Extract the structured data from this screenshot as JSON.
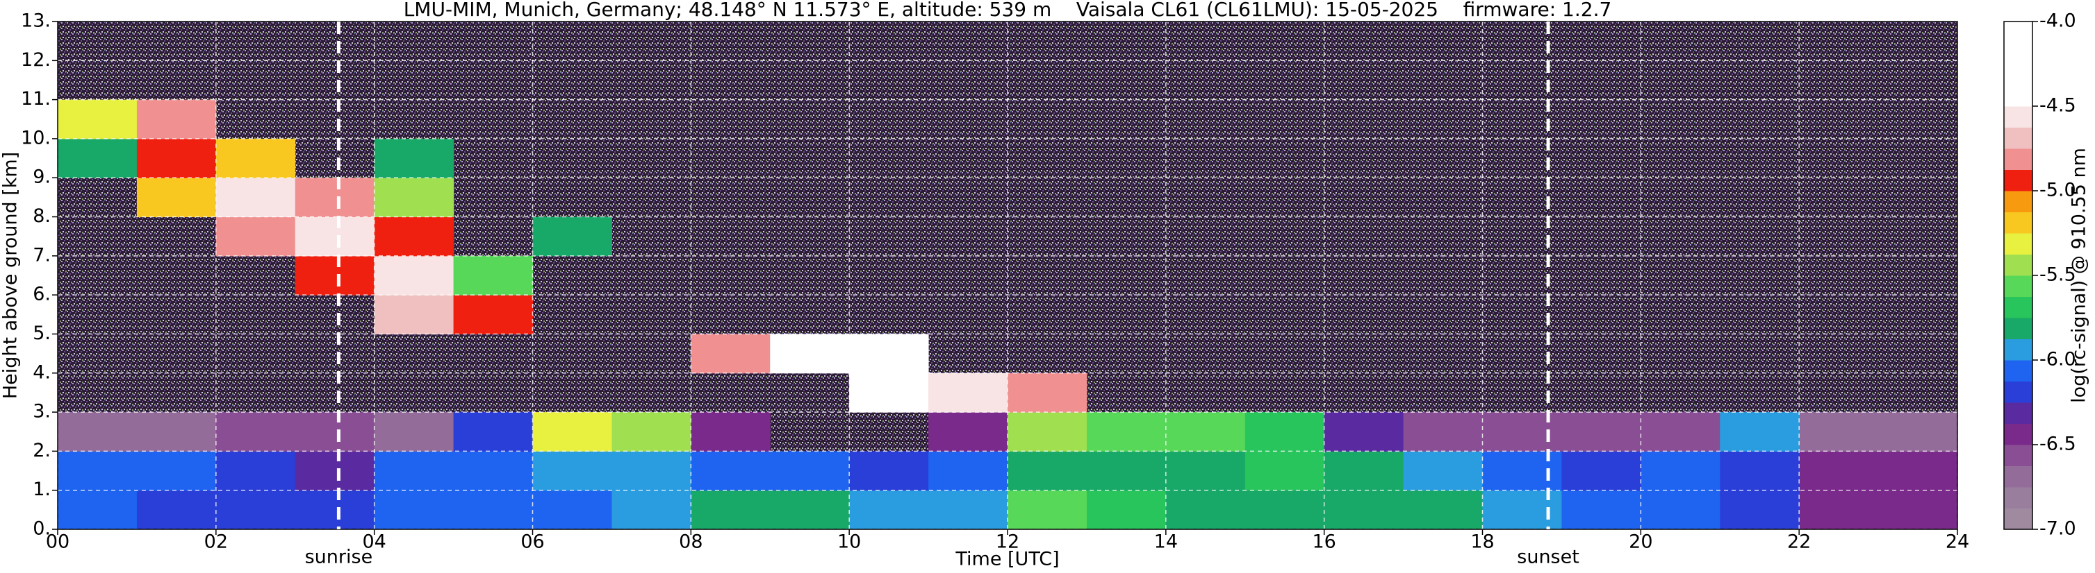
{
  "chart_data": {
    "type": "heatmap",
    "title": "LMU-MIM, Munich, Germany; 48.148° N 11.573° E, altitude: 539 m    Vaisala CL61 (CL61LMU): 15-05-2025    firmware: 1.2.7",
    "x_label": "Time [UTC]",
    "y_label": "Height above ground [km]",
    "colorbar_label": "log(rc-signal) @ 910.55 nm",
    "xlim": [
      0,
      24
    ],
    "ylim": [
      0,
      13
    ],
    "zlim": [
      -7,
      -4
    ],
    "xticks": [
      {
        "value": 0,
        "label": "00"
      },
      {
        "value": 2,
        "label": "02"
      },
      {
        "value": 4,
        "label": "04"
      },
      {
        "value": 6,
        "label": "06"
      },
      {
        "value": 8,
        "label": "08"
      },
      {
        "value": 10,
        "label": "10"
      },
      {
        "value": 12,
        "label": "12"
      },
      {
        "value": 14,
        "label": "14"
      },
      {
        "value": 16,
        "label": "16"
      },
      {
        "value": 18,
        "label": "18"
      },
      {
        "value": 20,
        "label": "20"
      },
      {
        "value": 22,
        "label": "22"
      },
      {
        "value": 24,
        "label": "24"
      }
    ],
    "yticks": [
      {
        "value": 0,
        "label": "0."
      },
      {
        "value": 1,
        "label": "1."
      },
      {
        "value": 2,
        "label": "2."
      },
      {
        "value": 3,
        "label": "3."
      },
      {
        "value": 4,
        "label": "4."
      },
      {
        "value": 5,
        "label": "5."
      },
      {
        "value": 6,
        "label": "6."
      },
      {
        "value": 7,
        "label": "7."
      },
      {
        "value": 8,
        "label": "8."
      },
      {
        "value": 9,
        "label": "9."
      },
      {
        "value": 10,
        "label": "10."
      },
      {
        "value": 11,
        "label": "11."
      },
      {
        "value": 12,
        "label": "12."
      },
      {
        "value": 13,
        "label": "13."
      }
    ],
    "zticks": [
      {
        "value": -4,
        "label": "-4.0"
      },
      {
        "value": -4.5,
        "label": "-4.5"
      },
      {
        "value": -5,
        "label": "-5.0"
      },
      {
        "value": -5.5,
        "label": "-5.5"
      },
      {
        "value": -6,
        "label": "-6.0"
      },
      {
        "value": -6.5,
        "label": "-6.5"
      },
      {
        "value": -7,
        "label": "-7.0"
      }
    ],
    "colors": [
      "#a08aa0",
      "#9a7e9e",
      "#946c9a",
      "#8a4e94",
      "#7a2a8a",
      "#5a2aa0",
      "#2a3ed8",
      "#1e64f0",
      "#2a9ce0",
      "#18a868",
      "#28c45c",
      "#58d858",
      "#a0e050",
      "#e8f040",
      "#f8c820",
      "#f89a10",
      "#f02010",
      "#f09090",
      "#f0c0c0",
      "#f8e4e4",
      "#ffffff",
      "#ffffff",
      "#ffffff",
      "#ffffff"
    ],
    "grid": true,
    "annotations": [
      {
        "label": "sunrise",
        "x": 3.55
      },
      {
        "label": "sunset",
        "x": 18.83
      }
    ],
    "z": [
      [
        -6.1,
        -6.2,
        -6.2,
        -6.2,
        -6.1,
        -6.1,
        -6.1,
        -6.0,
        -5.8,
        -5.8,
        -6.0,
        -6.0,
        -5.6,
        -5.7,
        -5.8,
        -5.8,
        -5.8,
        -5.8,
        -6.0,
        -6.1,
        -6.1,
        -6.2,
        -6.4,
        -6.4
      ],
      [
        -6.1,
        -6.1,
        -6.2,
        -6.3,
        -6.1,
        -6.1,
        -6.0,
        -6.0,
        -6.1,
        -6.1,
        -6.2,
        -6.1,
        -5.8,
        -5.8,
        -5.8,
        -5.7,
        -5.8,
        -5.9,
        -6.1,
        -6.2,
        -6.1,
        -6.2,
        -6.4,
        -6.5
      ],
      [
        -6.7,
        -6.7,
        -6.6,
        -6.6,
        -6.7,
        -6.2,
        -5.3,
        -5.4,
        -6.4,
        null,
        null,
        -6.5,
        -5.5,
        -5.6,
        -5.6,
        -5.7,
        -6.3,
        -6.6,
        -6.6,
        -6.6,
        -6.6,
        -6.0,
        -6.7,
        -6.7
      ],
      [
        null,
        null,
        null,
        null,
        null,
        null,
        null,
        null,
        null,
        null,
        -4.5,
        -4.6,
        -4.8,
        null,
        null,
        null,
        null,
        null,
        null,
        null,
        null,
        null,
        null,
        null
      ],
      [
        null,
        null,
        null,
        null,
        null,
        null,
        null,
        null,
        -4.8,
        -4.4,
        -4.4,
        null,
        null,
        null,
        null,
        null,
        null,
        null,
        null,
        null,
        null,
        null,
        null,
        null
      ],
      [
        null,
        null,
        null,
        null,
        -4.7,
        -5.0,
        null,
        null,
        null,
        null,
        null,
        null,
        null,
        null,
        null,
        null,
        null,
        null,
        null,
        null,
        null,
        null,
        null,
        null
      ],
      [
        null,
        null,
        null,
        -5.0,
        -4.6,
        -5.6,
        null,
        null,
        null,
        null,
        null,
        null,
        null,
        null,
        null,
        null,
        null,
        null,
        null,
        null,
        null,
        null,
        null,
        null
      ],
      [
        null,
        null,
        -4.8,
        -4.6,
        -5.0,
        null,
        -5.8,
        null,
        null,
        null,
        null,
        null,
        null,
        null,
        null,
        null,
        null,
        null,
        null,
        null,
        null,
        null,
        null,
        null
      ],
      [
        null,
        -5.2,
        -4.6,
        -4.8,
        -5.4,
        null,
        null,
        null,
        null,
        null,
        null,
        null,
        null,
        null,
        null,
        null,
        null,
        null,
        null,
        null,
        null,
        null,
        null,
        null
      ],
      [
        -5.8,
        -4.9,
        -5.2,
        null,
        -5.8,
        null,
        null,
        null,
        null,
        null,
        null,
        null,
        null,
        null,
        null,
        null,
        null,
        null,
        null,
        null,
        null,
        null,
        null,
        null
      ],
      [
        -5.3,
        -4.8,
        null,
        null,
        null,
        null,
        null,
        null,
        null,
        null,
        null,
        null,
        null,
        null,
        null,
        null,
        null,
        null,
        null,
        null,
        null,
        null,
        null,
        null
      ],
      [
        null,
        null,
        null,
        null,
        null,
        null,
        null,
        null,
        null,
        null,
        null,
        null,
        null,
        null,
        null,
        null,
        null,
        null,
        null,
        null,
        null,
        null,
        null,
        null
      ],
      [
        null,
        null,
        null,
        null,
        null,
        null,
        null,
        null,
        null,
        null,
        null,
        null,
        null,
        null,
        null,
        null,
        null,
        null,
        null,
        null,
        null,
        null,
        null,
        null
      ]
    ]
  }
}
